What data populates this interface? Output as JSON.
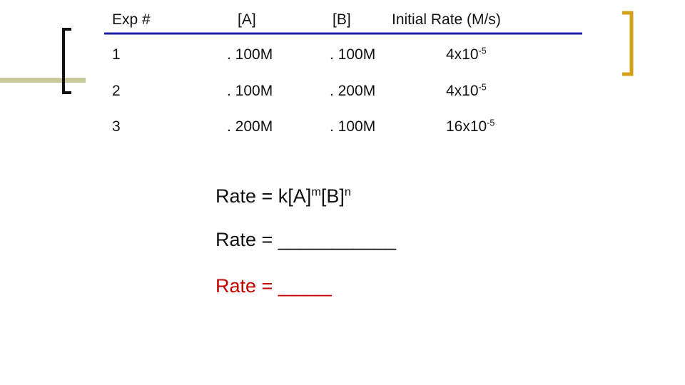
{
  "table": {
    "headers": [
      "Exp #",
      "[A]",
      "[B]",
      "Initial Rate (M/s)"
    ],
    "rows": [
      [
        "1",
        ". 100M",
        ". 100M",
        {
          "base": "4x10",
          "exp": "-5"
        }
      ],
      [
        "2",
        ". 100M",
        ". 200M",
        {
          "base": "4x10",
          "exp": "-5"
        }
      ],
      [
        "3",
        ". 200M",
        ". 100M",
        {
          "base": "16x10",
          "exp": "-5"
        }
      ]
    ]
  },
  "equations": {
    "rate_law": [
      "Rate = k[A]",
      "m",
      "[B]",
      "n"
    ],
    "blank": "Rate = ___________",
    "answer": "Rate = _____"
  }
}
